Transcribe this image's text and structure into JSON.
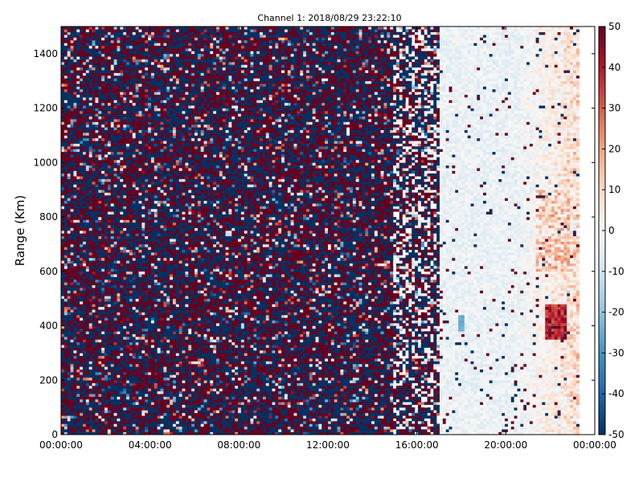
{
  "chart_data": {
    "type": "heatmap",
    "title": "Channel 1: 2018/08/29 23:22:10",
    "xlabel": "",
    "ylabel": "Range (Km)",
    "x_tick_labels": [
      "00:00:00",
      "04:00:00",
      "08:00:00",
      "12:00:00",
      "16:00:00",
      "20:00:00",
      "00:00:00"
    ],
    "x_tick_hours": [
      0,
      4,
      8,
      12,
      16,
      20,
      24
    ],
    "xlim_hours": [
      0,
      24
    ],
    "y_ticks": [
      0,
      200,
      400,
      600,
      800,
      1000,
      1200,
      1400
    ],
    "ylim": [
      0,
      1500
    ],
    "colorbar": {
      "ticks": [
        -50,
        -40,
        -30,
        -20,
        -10,
        0,
        10,
        20,
        30,
        40,
        50
      ],
      "range": [
        -50,
        50
      ],
      "colormap": "RdBu_r",
      "colors": [
        "#053061",
        "#2166ac",
        "#4393c3",
        "#92c5de",
        "#d1e5f0",
        "#f7f7f7",
        "#fddbc7",
        "#f4a582",
        "#d6604d",
        "#b2182b",
        "#67001f"
      ]
    },
    "regions": [
      {
        "hours": [
          0,
          15
        ],
        "description": "random noise spanning full range, extreme values ±50",
        "value_range": [
          -50,
          50
        ]
      },
      {
        "hours": [
          15,
          17
        ],
        "description": "transition: noise with white gaps",
        "value_range": [
          -50,
          50
        ]
      },
      {
        "hours": [
          17,
          23.3
        ],
        "description": "mostly light blue/white, values near -10 to 0, red patches near 21-23h",
        "value_range": [
          -35,
          45
        ]
      },
      {
        "hours": [
          21.8,
          22.7
        ],
        "range_km": [
          350,
          480
        ],
        "description": "strong red patch",
        "value_range": [
          30,
          50
        ]
      },
      {
        "hours": [
          17.8,
          18.2
        ],
        "range_km": [
          380,
          440
        ],
        "description": "blue patch",
        "value_range": [
          -30,
          -20
        ]
      }
    ],
    "grid": false
  }
}
